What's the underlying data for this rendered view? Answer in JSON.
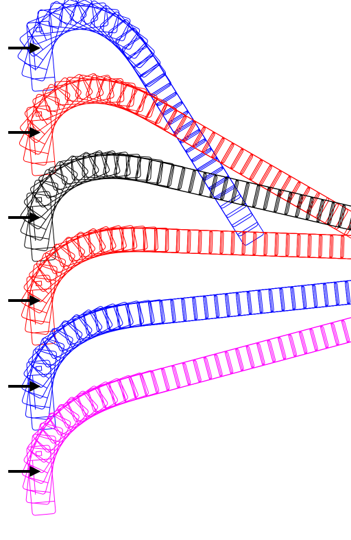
{
  "trajectories": [
    {
      "color": "#0000ff"
    },
    {
      "color": "#ff0000"
    },
    {
      "color": "#000000"
    },
    {
      "color": "#ff0000"
    },
    {
      "color": "#0000ff"
    },
    {
      "color": "#ff00ff"
    }
  ]
}
